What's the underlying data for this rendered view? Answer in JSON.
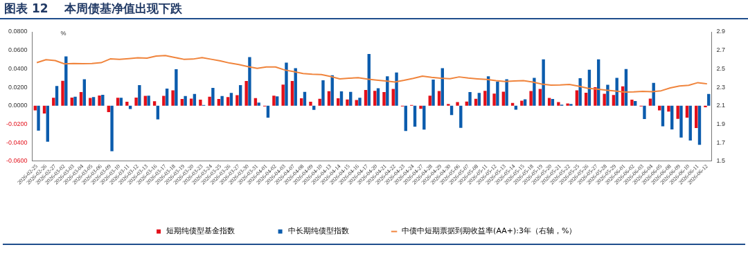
{
  "chart_data": {
    "type": "bar",
    "title": "图表 12    本周债基净值出现下跌",
    "ylabel": "%",
    "categories": [
      "2026-02-25",
      "2026-02-26",
      "2026-02-27",
      "2026-03-02",
      "2026-03-03",
      "2026-03-04",
      "2026-03-05",
      "2026-03-06",
      "2026-03-09",
      "2026-03-10",
      "2026-03-11",
      "2026-03-12",
      "2026-03-13",
      "2026-03-16",
      "2026-03-17",
      "2026-03-18",
      "2026-03-19",
      "2026-03-20",
      "2026-03-23",
      "2026-03-24",
      "2026-03-25",
      "2026-03-26",
      "2026-03-27",
      "2026-03-30",
      "2026-03-31",
      "2026-04-01",
      "2026-04-02",
      "2026-04-03",
      "2026-04-07",
      "2026-04-08",
      "2026-04-09",
      "2026-04-10",
      "2026-04-13",
      "2026-04-14",
      "2026-04-15",
      "2026-04-16",
      "2026-04-17",
      "2026-04-20",
      "2026-04-21",
      "2026-04-22",
      "2026-04-23",
      "2026-04-24",
      "2026-04-27",
      "2026-04-28",
      "2026-04-29",
      "2026-04-30",
      "2026-05-06",
      "2026-05-07",
      "2026-05-08",
      "2026-05-11",
      "2026-05-12",
      "2026-05-13",
      "2026-05-14",
      "2026-05-15",
      "2026-05-18",
      "2026-05-19",
      "2026-05-20",
      "2026-05-21",
      "2026-05-22",
      "2026-05-25",
      "2026-05-26",
      "2026-05-27",
      "2026-05-28",
      "2026-05-29",
      "2026-06-01",
      "2026-06-02",
      "2026-06-03",
      "2026-06-04",
      "2026-06-05",
      "2026-06-08",
      "2026-06-09",
      "2026-06-10",
      "2026-06-11",
      "2026-06-12"
    ],
    "series": [
      {
        "name": "短期纯债型基金指数",
        "color": "#e3101a",
        "values": [
          -0.005,
          -0.0085,
          0.0086,
          0.027,
          0.0089,
          0.0148,
          0.0084,
          0.0111,
          -0.007,
          0.0086,
          0.0043,
          0.0089,
          0.0107,
          0.0048,
          0.0107,
          0.0166,
          0.0073,
          0.0077,
          0.0066,
          0.0098,
          0.0073,
          0.0093,
          0.0114,
          0.0268,
          0.0082,
          -0.0007,
          0.0109,
          0.0229,
          0.0268,
          0.008,
          0.0043,
          0.0075,
          0.0157,
          0.008,
          0.0068,
          0.0061,
          0.017,
          0.0161,
          0.0148,
          0.0182,
          -0.0007,
          0.0007,
          -0.0034,
          0.0109,
          0.0159,
          0.0018,
          0.0039,
          0.0045,
          0.0075,
          0.0161,
          0.0132,
          0.0152,
          0.003,
          0.0055,
          0.0159,
          0.0182,
          0.0084,
          0.0039,
          0.0025,
          0.0166,
          0.0141,
          0.02,
          0.013,
          0.0116,
          0.0209,
          0.0066,
          -0.0007,
          0.0077,
          -0.005,
          -0.0064,
          -0.0143,
          -0.0129,
          -0.0241,
          -0.0016
        ]
      },
      {
        "name": "中长期纯债型指数",
        "color": "#0b5cad",
        "values": [
          -0.027,
          -0.039,
          0.0214,
          0.0534,
          0.0098,
          0.0286,
          0.0093,
          0.0118,
          -0.0493,
          0.0086,
          -0.0036,
          0.0223,
          0.0109,
          -0.0148,
          0.0186,
          0.0395,
          0.0105,
          0.0127,
          0.0007,
          0.0193,
          0.0105,
          0.0139,
          0.0223,
          0.0527,
          0.0034,
          -0.0129,
          0.0102,
          0.0466,
          0.0407,
          0.015,
          -0.0045,
          0.0275,
          0.033,
          0.0155,
          0.015,
          0.0086,
          0.0561,
          0.0189,
          0.0318,
          0.0359,
          -0.0273,
          -0.0227,
          -0.0259,
          0.0282,
          0.0407,
          -0.0102,
          -0.0239,
          0.0148,
          0.0139,
          0.0318,
          0.0261,
          0.0286,
          -0.0043,
          0.007,
          0.0302,
          0.0502,
          0.0073,
          0.0011,
          0.0018,
          0.0298,
          0.0389,
          0.0502,
          0.0227,
          0.0302,
          0.0398,
          0.005,
          -0.0145,
          0.0248,
          -0.0223,
          -0.0257,
          -0.0345,
          -0.0377,
          -0.0423,
          0.0127
        ]
      },
      {
        "name": "中债中短期票据到期收益率(AA+):3年（右轴，%）",
        "type": "line",
        "axis": "y2",
        "color": "#f0843c",
        "values": [
          2.566,
          2.598,
          2.589,
          2.553,
          2.557,
          2.555,
          2.557,
          2.566,
          2.607,
          2.603,
          2.61,
          2.619,
          2.616,
          2.637,
          2.644,
          2.623,
          2.603,
          2.605,
          2.621,
          2.603,
          2.585,
          2.562,
          2.546,
          2.523,
          2.505,
          2.52,
          2.52,
          2.487,
          2.469,
          2.448,
          2.441,
          2.437,
          2.416,
          2.391,
          2.398,
          2.403,
          2.389,
          2.378,
          2.368,
          2.357,
          2.375,
          2.396,
          2.421,
          2.407,
          2.398,
          2.393,
          2.412,
          2.4,
          2.391,
          2.384,
          2.371,
          2.362,
          2.368,
          2.371,
          2.357,
          2.334,
          2.323,
          2.325,
          2.33,
          2.312,
          2.289,
          2.28,
          2.268,
          2.259,
          2.248,
          2.25,
          2.255,
          2.252,
          2.262,
          2.293,
          2.314,
          2.321,
          2.35,
          2.337
        ]
      }
    ],
    "ylim": [
      -0.06,
      0.08
    ],
    "yticks": [
      {
        "value": -0.06,
        "label": "-0.0600"
      },
      {
        "value": -0.04,
        "label": "-0.0400"
      },
      {
        "value": -0.02,
        "label": "-0.0200"
      },
      {
        "value": 0,
        "label": "0.0000"
      },
      {
        "value": 0.02,
        "label": "0.0200"
      },
      {
        "value": 0.04,
        "label": "0.0400"
      },
      {
        "value": 0.06,
        "label": "0.0600"
      },
      {
        "value": 0.08,
        "label": "0.0800"
      }
    ],
    "y2lim": [
      1.5,
      2.9
    ],
    "y2ticks": [
      1.5,
      1.7,
      1.9,
      2.1,
      2.3,
      2.5,
      2.7,
      2.9
    ],
    "grid": false,
    "legend": "bottom",
    "marker": "none",
    "line_style": "solid"
  }
}
